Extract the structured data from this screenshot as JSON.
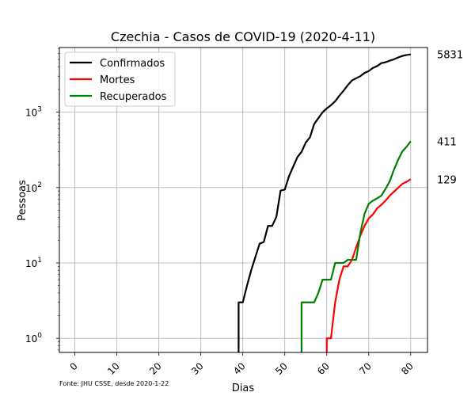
{
  "chart_data": {
    "type": "line",
    "title": "Czechia - Casos de COVID-19 (2020-4-11)",
    "xlabel": "Dias",
    "ylabel": "Pessoas",
    "xlim": [
      -3.7,
      84
    ],
    "ylim": [
      0.65,
      7200
    ],
    "yscale": "log",
    "grid": true,
    "legend": "top-left",
    "xticks": [
      0,
      10,
      20,
      30,
      40,
      50,
      60,
      70,
      80
    ],
    "yticks": [
      {
        "value": 1,
        "label": "10",
        "exp": "0"
      },
      {
        "value": 10,
        "label": "10",
        "exp": "1"
      },
      {
        "value": 100,
        "label": "10",
        "exp": "2"
      },
      {
        "value": 1000,
        "label": "10",
        "exp": "3"
      }
    ],
    "series": [
      {
        "name": "Confirmados",
        "color": "#000000",
        "end_label": "5831",
        "points": [
          [
            39,
            0.001
          ],
          [
            39,
            3
          ],
          [
            40,
            3
          ],
          [
            41,
            5
          ],
          [
            42,
            8
          ],
          [
            43,
            12
          ],
          [
            44,
            18
          ],
          [
            45,
            19
          ],
          [
            46,
            31
          ],
          [
            47,
            31
          ],
          [
            48,
            41
          ],
          [
            49,
            91
          ],
          [
            50,
            94
          ],
          [
            51,
            141
          ],
          [
            52,
            189
          ],
          [
            53,
            253
          ],
          [
            54,
            298
          ],
          [
            55,
            396
          ],
          [
            56,
            464
          ],
          [
            57,
            694
          ],
          [
            58,
            833
          ],
          [
            59,
            995
          ],
          [
            60,
            1120
          ],
          [
            61,
            1236
          ],
          [
            62,
            1394
          ],
          [
            63,
            1654
          ],
          [
            64,
            1925
          ],
          [
            65,
            2279
          ],
          [
            66,
            2631
          ],
          [
            67,
            2817
          ],
          [
            68,
            3001
          ],
          [
            69,
            3308
          ],
          [
            70,
            3508
          ],
          [
            71,
            3858
          ],
          [
            72,
            4091
          ],
          [
            73,
            4472
          ],
          [
            74,
            4587
          ],
          [
            75,
            4822
          ],
          [
            76,
            5017
          ],
          [
            77,
            5312
          ],
          [
            78,
            5569
          ],
          [
            79,
            5732
          ],
          [
            80,
            5831
          ]
        ]
      },
      {
        "name": "Mortes",
        "color": "#ff0000",
        "end_label": "129",
        "points": [
          [
            60,
            0.001
          ],
          [
            60,
            1
          ],
          [
            61,
            1
          ],
          [
            62,
            3
          ],
          [
            63,
            6
          ],
          [
            64,
            9
          ],
          [
            65,
            9
          ],
          [
            66,
            11
          ],
          [
            67,
            16
          ],
          [
            68,
            23
          ],
          [
            69,
            31
          ],
          [
            70,
            39
          ],
          [
            71,
            44
          ],
          [
            72,
            53
          ],
          [
            73,
            59
          ],
          [
            74,
            67
          ],
          [
            75,
            78
          ],
          [
            76,
            88
          ],
          [
            77,
            99
          ],
          [
            78,
            112
          ],
          [
            79,
            119
          ],
          [
            80,
            129
          ]
        ]
      },
      {
        "name": "Recuperados",
        "color": "#008000",
        "end_label": "411",
        "points": [
          [
            54,
            0.001
          ],
          [
            54,
            3
          ],
          [
            55,
            3
          ],
          [
            56,
            3
          ],
          [
            57,
            3
          ],
          [
            58,
            4
          ],
          [
            59,
            6
          ],
          [
            60,
            6
          ],
          [
            61,
            6
          ],
          [
            62,
            10
          ],
          [
            63,
            10
          ],
          [
            64,
            10
          ],
          [
            65,
            11
          ],
          [
            66,
            11
          ],
          [
            67,
            11
          ],
          [
            68,
            25
          ],
          [
            69,
            45
          ],
          [
            70,
            61
          ],
          [
            71,
            67
          ],
          [
            72,
            72
          ],
          [
            73,
            78
          ],
          [
            74,
            96
          ],
          [
            75,
            121
          ],
          [
            76,
            172
          ],
          [
            77,
            233
          ],
          [
            78,
            301
          ],
          [
            79,
            347
          ],
          [
            80,
            411
          ]
        ]
      }
    ]
  },
  "source_note": "Fonte: JHU CSSE, desde 2020-1-22"
}
